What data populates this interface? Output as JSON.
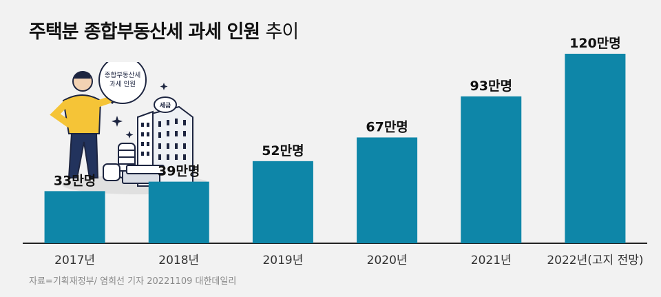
{
  "title": {
    "bold": "주택분 종합부동산세 과세 인원",
    "light": "추이"
  },
  "source": "자료=기획재정부/ 염희선 기자 20221109 대한데일리",
  "illustration": {
    "bubble_line1": "종합부동산세",
    "bubble_line2": "과세 인원",
    "tax_label": "세금"
  },
  "colors": {
    "bar": "#0e86a8",
    "background": "#f2f2f2",
    "axis": "#222222"
  },
  "chart_data": {
    "type": "bar",
    "title": "주택분 종합부동산세 과세 인원 추이",
    "categories": [
      "2017년",
      "2018년",
      "2019년",
      "2020년",
      "2021년",
      "2022년(고지 전망)"
    ],
    "values": [
      33,
      39,
      52,
      67,
      93,
      120
    ],
    "value_labels": [
      "33만명",
      "39만명",
      "52만명",
      "67만명",
      "93만명",
      "120만명"
    ],
    "unit": "만명",
    "ylim": [
      0,
      120
    ],
    "grid": false,
    "legend": "none"
  }
}
